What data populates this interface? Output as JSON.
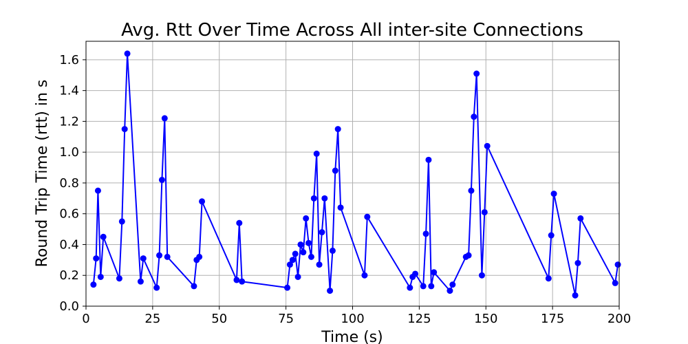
{
  "chart_data": {
    "type": "line",
    "title": "Avg. Rtt Over Time Across All inter-site Connections",
    "xlabel": "Time (s)",
    "ylabel": "Round Trip Time (rtt) in s",
    "xlim": [
      0,
      200
    ],
    "ylim": [
      0,
      1.72
    ],
    "xticks": [
      0,
      25,
      50,
      75,
      100,
      125,
      150,
      175,
      200
    ],
    "yticks": [
      0.0,
      0.2,
      0.4,
      0.6,
      0.8,
      1.0,
      1.2,
      1.4,
      1.6
    ],
    "xtick_labels": [
      "0",
      "25",
      "50",
      "75",
      "100",
      "125",
      "150",
      "175",
      "200"
    ],
    "ytick_labels": [
      "0.0",
      "0.2",
      "0.4",
      "0.6",
      "0.8",
      "1.0",
      "1.2",
      "1.4",
      "1.6"
    ],
    "grid": true,
    "series": [
      {
        "color": "#0000ff",
        "marker": "circle",
        "x": [
          2.8,
          3.8,
          4.5,
          5.5,
          6.5,
          12.5,
          13.5,
          14.5,
          15.5,
          20.5,
          21.5,
          26.5,
          27.5,
          28.5,
          29.5,
          30.5,
          40.5,
          41.5,
          42.5,
          43.5,
          56.5,
          57.5,
          58.5,
          75.5,
          76.5,
          77.5,
          78.5,
          79.5,
          80.5,
          81.5,
          82.5,
          83.5,
          84.5,
          85.5,
          86.5,
          87.5,
          88.5,
          89.5,
          91.5,
          92.5,
          93.5,
          94.5,
          95.5,
          104.5,
          105.5,
          121.5,
          122.5,
          123.5,
          126.5,
          127.5,
          128.5,
          129.5,
          130.5,
          136.5,
          137.5,
          142.5,
          143.5,
          144.5,
          145.5,
          146.5,
          148.5,
          149.5,
          150.5,
          173.5,
          174.5,
          175.5,
          183.5,
          184.5,
          185.5,
          198.5,
          199.5
        ],
        "y": [
          0.14,
          0.31,
          0.75,
          0.19,
          0.45,
          0.18,
          0.55,
          1.15,
          1.64,
          0.16,
          0.31,
          0.12,
          0.33,
          0.82,
          1.22,
          0.32,
          0.13,
          0.3,
          0.32,
          0.68,
          0.17,
          0.54,
          0.16,
          0.12,
          0.27,
          0.3,
          0.34,
          0.19,
          0.4,
          0.35,
          0.57,
          0.41,
          0.32,
          0.7,
          0.99,
          0.27,
          0.48,
          0.7,
          0.1,
          0.36,
          0.88,
          1.15,
          0.64,
          0.2,
          0.58,
          0.12,
          0.19,
          0.21,
          0.13,
          0.47,
          0.95,
          0.13,
          0.22,
          0.1,
          0.14,
          0.32,
          0.33,
          0.75,
          1.23,
          1.51,
          0.2,
          0.61,
          1.04,
          0.18,
          0.46,
          0.73,
          0.07,
          0.28,
          0.57,
          0.15,
          0.27
        ]
      }
    ]
  }
}
